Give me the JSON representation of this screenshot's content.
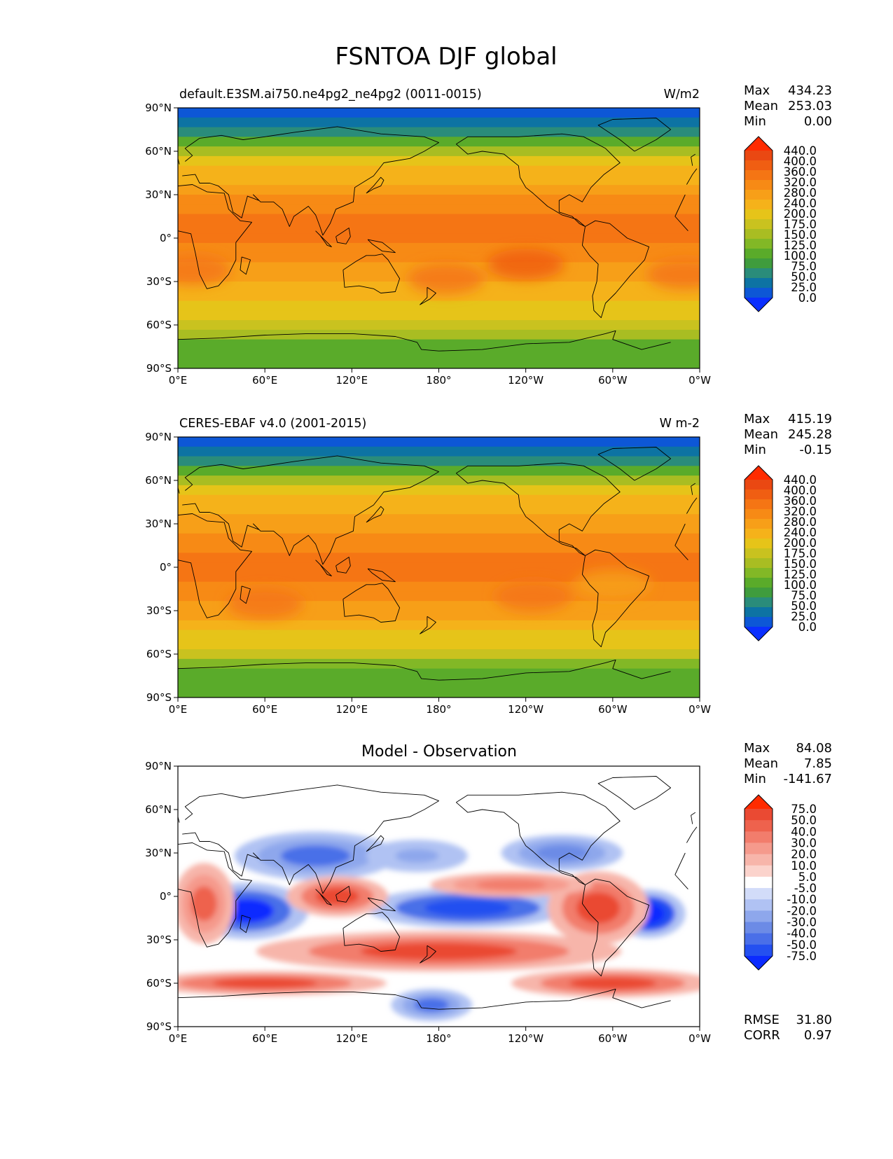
{
  "figure": {
    "title": "FSNTOA DJF global"
  },
  "axes": {
    "lat_ticks": [
      "90°N",
      "60°N",
      "30°N",
      "0°",
      "30°S",
      "60°S",
      "90°S"
    ],
    "lon_ticks": [
      "0°E",
      "60°E",
      "120°E",
      "180°",
      "120°W",
      "60°W",
      "0°W"
    ]
  },
  "colors": {
    "abs_levels": [
      "#0a2fff",
      "#0d57d6",
      "#0d73a3",
      "#2a8c7a",
      "#3f9c3d",
      "#5aab2a",
      "#82b826",
      "#a9bd22",
      "#c9c21f",
      "#e6c419",
      "#f5b21a",
      "#f79f18",
      "#f78a15",
      "#f57514",
      "#f05e12",
      "#ea4812",
      "#ff2b00"
    ],
    "diff_levels": [
      "#0b2bff",
      "#2450f0",
      "#4a6fe8",
      "#6c8be6",
      "#8ea7ec",
      "#b0c2f3",
      "#d2dcf9",
      "#ffffff",
      "#fbd3cc",
      "#f7b5aa",
      "#f59a8c",
      "#f27d6c",
      "#ee624d",
      "#ea4a33",
      "#ff2b00"
    ],
    "land_outline": "#000000"
  },
  "panels": [
    {
      "title_left": "default.E3SM.ai750.ne4pg2_ne4pg2 (0011-0015)",
      "title_center": "",
      "units": "W/m2",
      "stats": [
        {
          "label": "Max",
          "value": "434.23"
        },
        {
          "label": "Mean",
          "value": "253.03"
        },
        {
          "label": "Min",
          "value": "0.00"
        }
      ],
      "colorbar_labels": [
        "440.0",
        "400.0",
        "360.0",
        "320.0",
        "280.0",
        "240.0",
        "200.0",
        "175.0",
        "150.0",
        "125.0",
        "100.0",
        "75.0",
        "50.0",
        "25.0",
        "0.0"
      ],
      "band_values": [
        0,
        30,
        60,
        110,
        170,
        220,
        250,
        270,
        300,
        320,
        340,
        360,
        380,
        370,
        350,
        330,
        310,
        290,
        270,
        250,
        230,
        210,
        190,
        150,
        120,
        110,
        100
      ],
      "hotspots": [
        {
          "lon": 10,
          "lat": -22,
          "value": 395
        },
        {
          "lon": 240,
          "lat": -18,
          "value": 400
        },
        {
          "lon": 185,
          "lat": -28,
          "value": 385
        },
        {
          "lon": 350,
          "lat": -25,
          "value": 390
        }
      ]
    },
    {
      "title_left": "CERES-EBAF v4.0 (2001-2015)",
      "title_center": "",
      "units": "W m-2",
      "stats": [
        {
          "label": "Max",
          "value": "415.19"
        },
        {
          "label": "Mean",
          "value": "245.28"
        },
        {
          "label": "Min",
          "value": "-0.15"
        }
      ],
      "colorbar_labels": [
        "440.0",
        "400.0",
        "360.0",
        "320.0",
        "280.0",
        "240.0",
        "200.0",
        "175.0",
        "150.0",
        "125.0",
        "100.0",
        "75.0",
        "50.0",
        "25.0",
        "0.0"
      ],
      "band_values": [
        0,
        25,
        55,
        100,
        150,
        200,
        240,
        270,
        290,
        310,
        330,
        350,
        365,
        375,
        370,
        355,
        335,
        310,
        285,
        260,
        235,
        210,
        180,
        140,
        120,
        110,
        100
      ],
      "hotspots": [
        {
          "lon": 60,
          "lat": -25,
          "value": 385
        },
        {
          "lon": 245,
          "lat": -20,
          "value": 380
        },
        {
          "lon": 300,
          "lat": -12,
          "value": 300
        }
      ]
    },
    {
      "title_left": "",
      "title_center": "Model - Observation",
      "units": "",
      "stats": [
        {
          "label": "Max",
          "value": "84.08"
        },
        {
          "label": "Mean",
          "value": "7.85"
        },
        {
          "label": "Min",
          "value": "-141.67"
        }
      ],
      "colorbar_labels": [
        "75.0",
        "50.0",
        "40.0",
        "30.0",
        "20.0",
        "10.0",
        "5.0",
        "-5.0",
        "-10.0",
        "-20.0",
        "-30.0",
        "-40.0",
        "-50.0",
        "-75.0"
      ],
      "metrics": [
        {
          "label": "RMSE",
          "value": "31.80"
        },
        {
          "label": "CORR",
          "value": "0.97"
        }
      ],
      "blobs": [
        {
          "lon": 48,
          "lat": -10,
          "rx": 30,
          "ry": 14,
          "value": -80
        },
        {
          "lon": 200,
          "lat": -8,
          "rx": 50,
          "ry": 10,
          "value": -70
        },
        {
          "lon": 325,
          "lat": -12,
          "rx": 18,
          "ry": 12,
          "value": -85
        },
        {
          "lon": 95,
          "lat": 28,
          "rx": 40,
          "ry": 12,
          "value": -45
        },
        {
          "lon": 265,
          "lat": 30,
          "rx": 30,
          "ry": 9,
          "value": -40
        },
        {
          "lon": 165,
          "lat": 28,
          "rx": 25,
          "ry": 8,
          "value": -25
        },
        {
          "lon": 175,
          "lat": -75,
          "rx": 20,
          "ry": 8,
          "value": -45
        },
        {
          "lon": 18,
          "lat": -5,
          "rx": 15,
          "ry": 20,
          "value": 45
        },
        {
          "lon": 110,
          "lat": 0,
          "rx": 25,
          "ry": 10,
          "value": 55
        },
        {
          "lon": 290,
          "lat": -8,
          "rx": 25,
          "ry": 18,
          "value": 55
        },
        {
          "lon": 180,
          "lat": -38,
          "rx": 90,
          "ry": 10,
          "value": 50
        },
        {
          "lon": 60,
          "lat": -60,
          "rx": 60,
          "ry": 6,
          "value": 55
        },
        {
          "lon": 300,
          "lat": -60,
          "rx": 50,
          "ry": 7,
          "value": 50
        },
        {
          "lon": 230,
          "lat": 8,
          "rx": 40,
          "ry": 6,
          "value": 35
        }
      ]
    }
  ]
}
